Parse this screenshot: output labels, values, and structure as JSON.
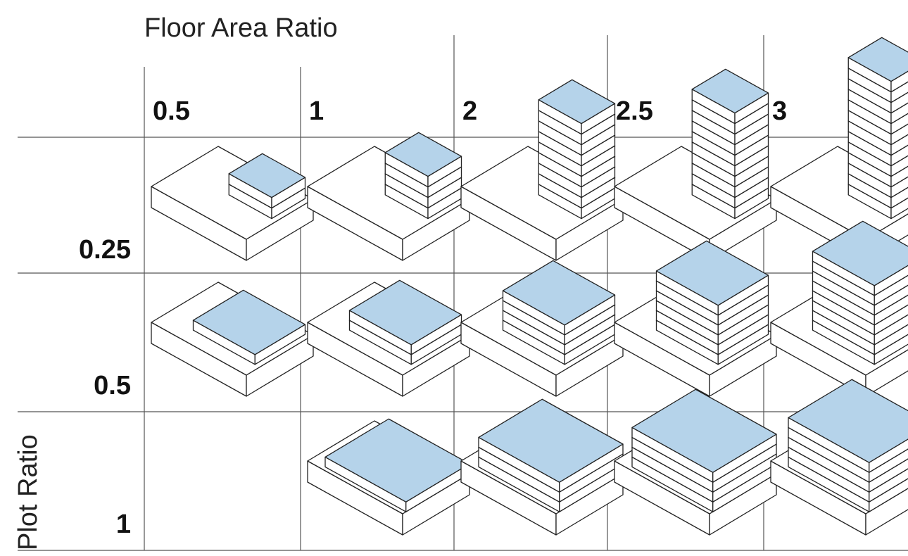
{
  "title": "Floor Area Ratio",
  "y_axis_label": "Plot Ratio",
  "columns": [
    "0.5",
    "1",
    "2",
    "2.5",
    "3"
  ],
  "rows": [
    "0.25",
    "0.5",
    "1"
  ]
}
